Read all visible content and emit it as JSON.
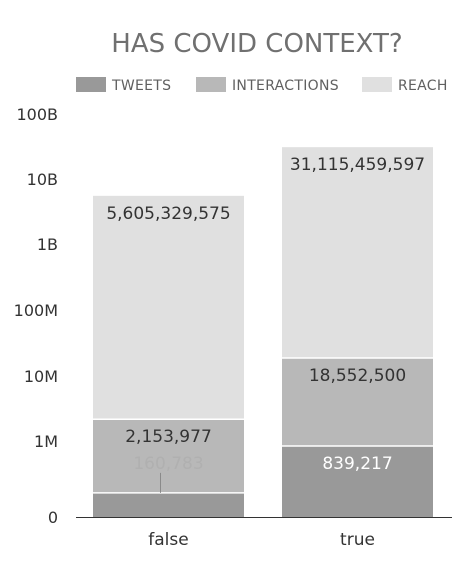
{
  "chart_data": {
    "type": "bar",
    "stacked": true,
    "title": "HAS COVID CONTEXT?",
    "categories": [
      "false",
      "true"
    ],
    "y_scale": "log",
    "y_ticks": [
      "0",
      "1M",
      "10M",
      "100M",
      "1B",
      "10B",
      "100B"
    ],
    "legend_position": "top",
    "series": [
      {
        "name": "TWEETS",
        "color": "#999999",
        "values": [
          160783,
          839217
        ],
        "labels": [
          "160,783",
          "839,217"
        ]
      },
      {
        "name": "INTERACTIONS",
        "color": "#b8b8b8",
        "values": [
          2153977,
          18552500
        ],
        "labels": [
          "2,153,977",
          "18,552,500"
        ]
      },
      {
        "name": "REACH",
        "color": "#e0e0e0",
        "values": [
          5605329575,
          31115459597
        ],
        "labels": [
          "5,605,329,575",
          "31,115,459,597"
        ]
      }
    ]
  }
}
